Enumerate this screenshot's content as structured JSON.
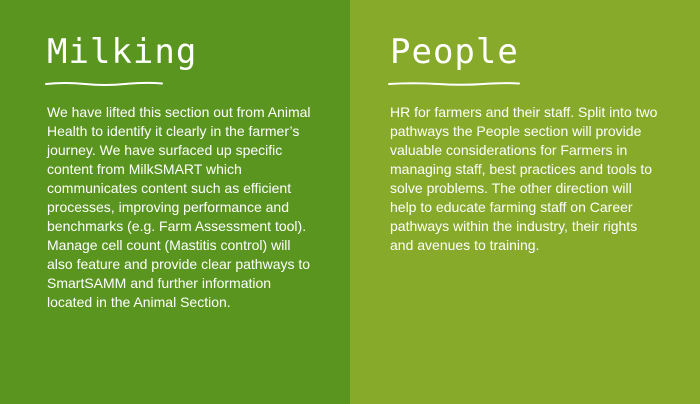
{
  "milking": {
    "title": "Milking",
    "body": "We have lifted this section out from Animal Health to identify it clearly in the farmer’s journey. We have surfaced up specific content from MilkSMART which communicates content such as efficient processes, improving performance and benchmarks (e.g. Farm Assessment tool). Manage cell count (Mastitis control) will also feature and provide clear pathways to SmartSAMM and further information located in the Animal Section."
  },
  "people": {
    "title": "People",
    "body": "HR for farmers and their staff. Split into two pathways the People section will provide valuable considerations for Farmers in managing staff, best practices and tools to solve problems. The other direction will help to educate farming staff on Career pathways within the industry, their rights and avenues to training."
  },
  "colors": {
    "left_panel": "#5a951f",
    "right_panel": "#87aa2a",
    "text": "#ffffff"
  }
}
